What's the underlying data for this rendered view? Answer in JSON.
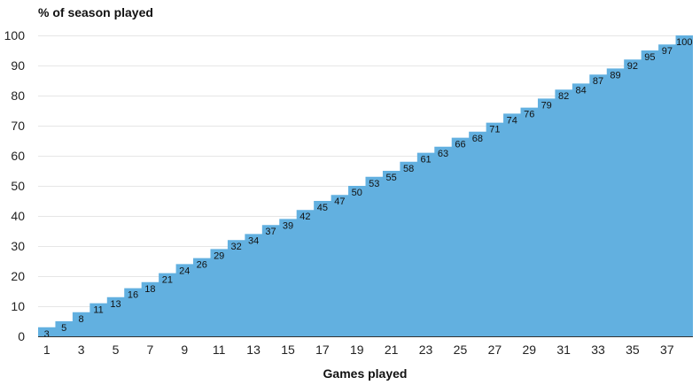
{
  "chart_data": {
    "type": "area",
    "subtype": "step",
    "title": "",
    "ylabel": "% of season played",
    "xlabel": "Games played",
    "x": [
      1,
      2,
      3,
      4,
      5,
      6,
      7,
      8,
      9,
      10,
      11,
      12,
      13,
      14,
      15,
      16,
      17,
      18,
      19,
      20,
      21,
      22,
      23,
      24,
      25,
      26,
      27,
      28,
      29,
      30,
      31,
      32,
      33,
      34,
      35,
      36,
      37,
      38
    ],
    "values": [
      3,
      5,
      8,
      11,
      13,
      16,
      18,
      21,
      24,
      26,
      29,
      32,
      34,
      37,
      39,
      42,
      45,
      47,
      50,
      53,
      55,
      58,
      61,
      63,
      66,
      68,
      71,
      74,
      76,
      79,
      82,
      84,
      87,
      89,
      92,
      95,
      97,
      100
    ],
    "x_tick_labels": [
      "1",
      "3",
      "5",
      "7",
      "9",
      "11",
      "13",
      "15",
      "17",
      "19",
      "21",
      "23",
      "25",
      "27",
      "29",
      "31",
      "33",
      "35",
      "37"
    ],
    "y_tick_labels": [
      "0",
      "10",
      "20",
      "30",
      "40",
      "50",
      "60",
      "70",
      "80",
      "90",
      "100"
    ],
    "ylim": [
      0,
      100
    ],
    "grid": true,
    "fill_color": "#62b0e0",
    "legend": "none"
  }
}
